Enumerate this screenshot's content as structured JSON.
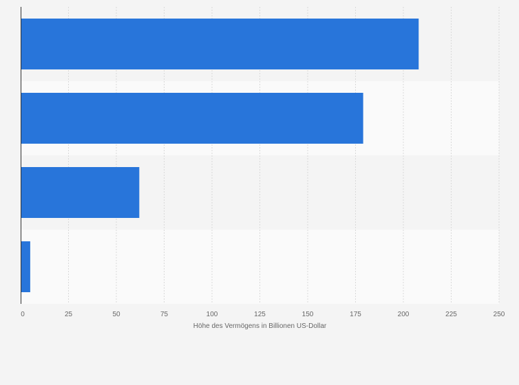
{
  "chart_data": {
    "type": "bar",
    "orientation": "horizontal",
    "title": "",
    "categories": [
      "",
      "",
      "",
      ""
    ],
    "values": [
      208,
      179,
      62,
      5
    ],
    "xlabel": "Höhe des Vermögens in Billionen US-Dollar",
    "ylabel": "",
    "xlim": [
      0,
      250
    ],
    "xticks": [
      "0",
      "25",
      "50",
      "75",
      "100",
      "125",
      "150",
      "175",
      "200",
      "225",
      "250"
    ],
    "grid": true,
    "legend": "none",
    "colors": {
      "bar": "#2875da",
      "background": "#f4f4f4",
      "band_even": "#f4f4f4",
      "band_odd": "#fafafa",
      "grid": "#d9d9d9",
      "axis": "#333333",
      "text": "#666666"
    }
  }
}
